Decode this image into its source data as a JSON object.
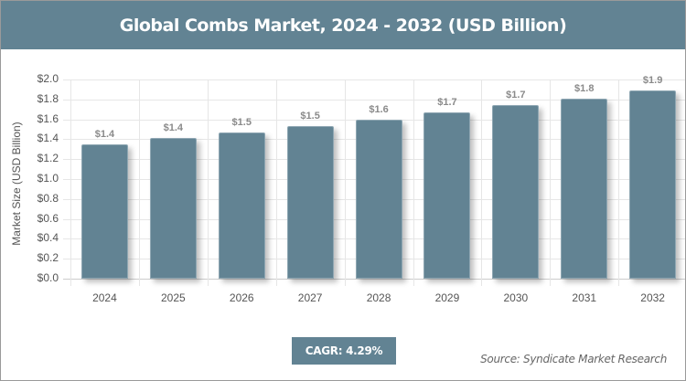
{
  "header": {
    "title": "Global Combs Market, 2024 - 2032 (USD Billion)"
  },
  "footer": {
    "cagr_label": "CAGR: 4.29%",
    "source": "Source: Syndicate Market Research"
  },
  "colors": {
    "bar": "#628393",
    "header": "#628393",
    "label": "#8a8a8a"
  },
  "chart_data": {
    "type": "bar",
    "title": "Global Combs Market, 2024 - 2032 (USD Billion)",
    "xlabel": "",
    "ylabel": "Market Size (USD Billion)",
    "categories": [
      "2024",
      "2025",
      "2026",
      "2027",
      "2028",
      "2029",
      "2030",
      "2031",
      "2032"
    ],
    "values": [
      1.35,
      1.41,
      1.47,
      1.53,
      1.6,
      1.67,
      1.74,
      1.81,
      1.89
    ],
    "data_labels": [
      "$1.4",
      "$1.4",
      "$1.5",
      "$1.5",
      "$1.6",
      "$1.7",
      "$1.7",
      "$1.8",
      "$1.9"
    ],
    "ylim": [
      0,
      2.0
    ],
    "yticks": [
      "$0.0",
      "$0.2",
      "$0.4",
      "$0.6",
      "$0.8",
      "$1.0",
      "$1.2",
      "$1.4",
      "$1.6",
      "$1.8",
      "$2.0"
    ],
    "grid": true,
    "legend": null,
    "annotations": [
      "CAGR: 4.29%",
      "Source: Syndicate Market Research"
    ]
  }
}
